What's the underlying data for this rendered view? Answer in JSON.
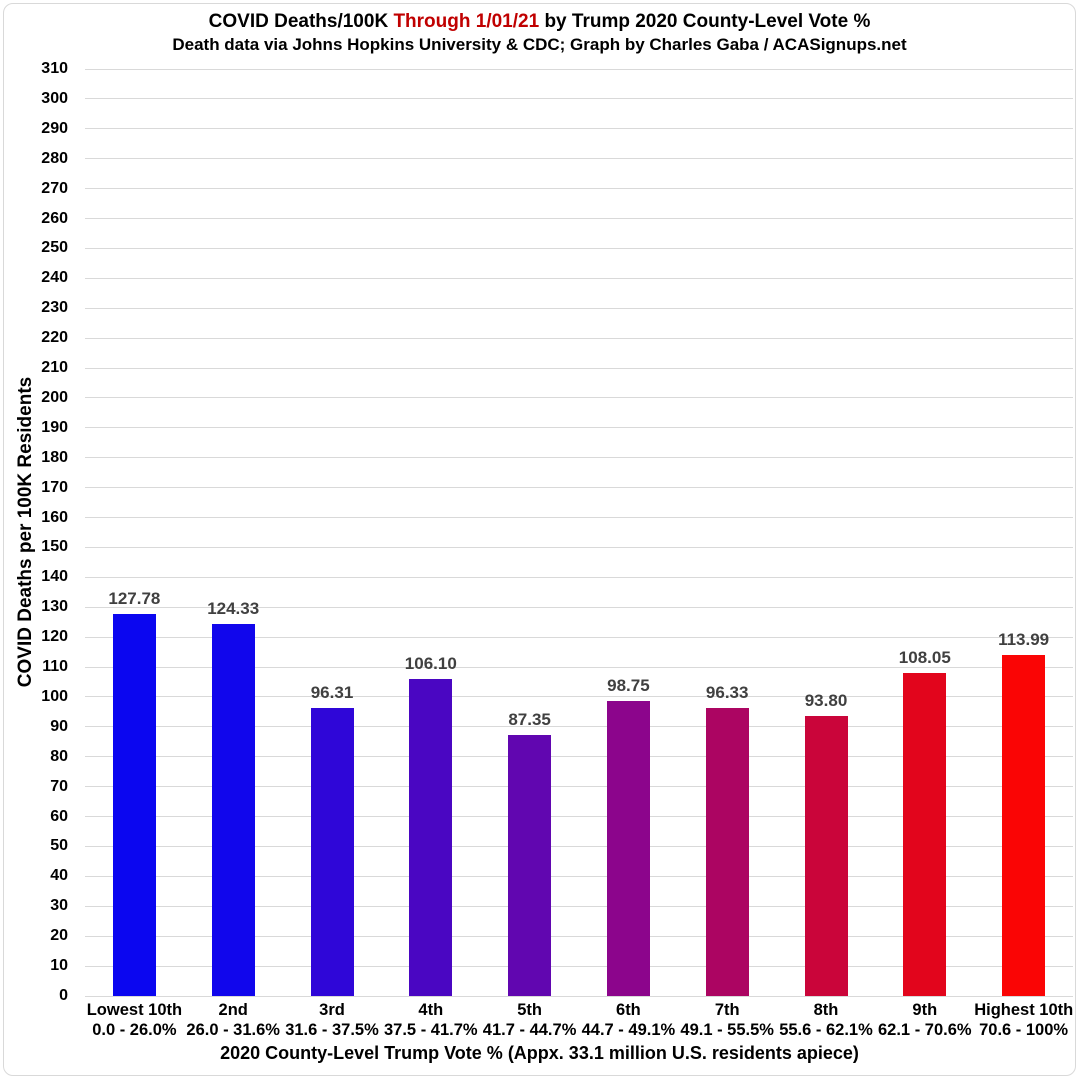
{
  "header": {
    "title_part1": "COVID Deaths/100K",
    "title_highlight": "Through 1/01/21",
    "title_part2": "by Trump 2020 County-Level Vote %",
    "subtitle": "Death data via Johns Hopkins University & CDC; Graph by Charles Gaba / ACASignups.net"
  },
  "colors": {
    "title_highlight_red": "#c00000",
    "value_label_gray": "#404040",
    "gridline_gray": "#d9d9d9",
    "axis_text_black": "#000000",
    "background": "#ffffff"
  },
  "chart_data": {
    "type": "bar",
    "title": "COVID Deaths/100K Through 1/01/21 by Trump 2020 County-Level Vote %",
    "subtitle": "Death data via Johns Hopkins University & CDC; Graph by Charles Gaba / ACASignups.net",
    "xlabel": "2020 County-Level Trump Vote % (Appx. 33.1 million U.S. residents apiece)",
    "ylabel": "COVID Deaths per 100K Residents",
    "ylim": [
      0,
      310
    ],
    "ytick_step": 10,
    "grid": "horizontal",
    "legend": "none",
    "categories": [
      "Lowest 10th",
      "2nd",
      "3rd",
      "4th",
      "5th",
      "6th",
      "7th",
      "8th",
      "9th",
      "Highest 10th"
    ],
    "category_ranges": [
      "0.0 - 26.0%",
      "26.0 - 31.6%",
      "31.6 - 37.5%",
      "37.5 - 41.7%",
      "41.7 - 44.7%",
      "44.7 - 49.1%",
      "49.1 - 55.5%",
      "55.6 - 62.1%",
      "62.1 - 70.6%",
      "70.6 - 100%"
    ],
    "values": [
      127.78,
      124.33,
      96.31,
      106.1,
      87.35,
      98.75,
      96.33,
      93.8,
      108.05,
      113.99
    ],
    "value_labels": [
      "127.78",
      "124.33",
      "96.31",
      "106.10",
      "87.35",
      "98.75",
      "96.33",
      "93.80",
      "108.05",
      "113.99"
    ],
    "bar_colors": [
      "#0b06f0",
      "#1106ec",
      "#2f06d8",
      "#4a06c2",
      "#6106b0",
      "#8c058c",
      "#ac0562",
      "#ca053a",
      "#e2051c",
      "#fa0505"
    ]
  }
}
